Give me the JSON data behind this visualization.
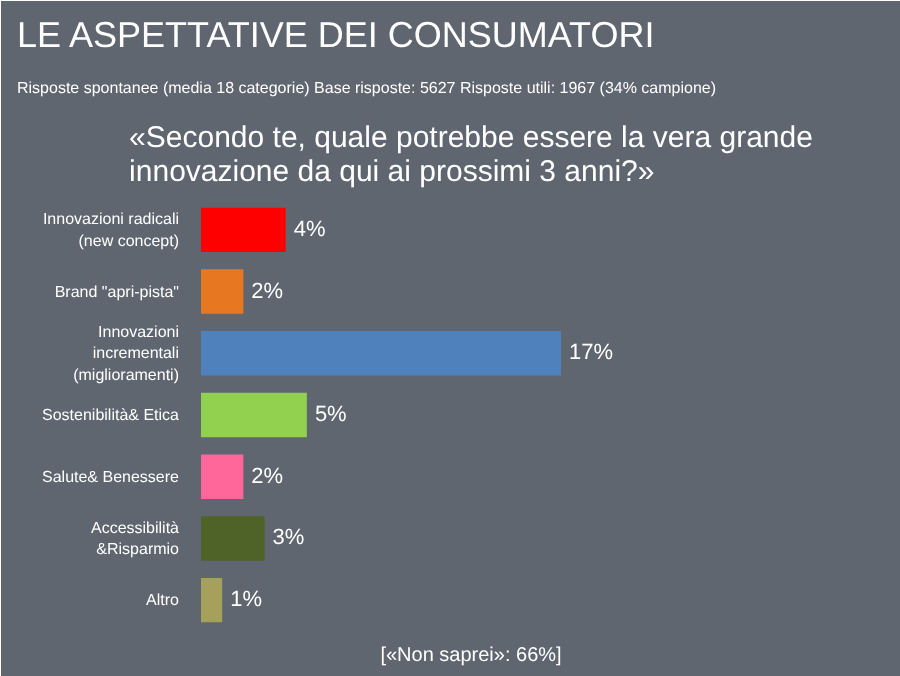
{
  "chart_data": {
    "type": "bar",
    "orientation": "horizontal",
    "title": "LE ASPETTATIVE DEI CONSUMATORI",
    "subtitle": "Risposte spontanee (media 18 categorie) Base risposte: 5627 Risposte utili: 1967 (34% campione)",
    "annotations": [
      "«Secondo te, quale potrebbe essere la vera grande innovazione da qui ai prossimi 3 anni?»",
      "[«Non saprei»: 66%]"
    ],
    "categories": [
      "Innovazioni radicali (new concept)",
      "Brand \"apri-pista\"",
      "Innovazioni incrementali (miglioramenti)",
      "Sostenibilità& Etica",
      "Salute& Benessere",
      "Accessibilità &Risparmio",
      "Altro"
    ],
    "values": [
      4,
      2,
      17,
      5,
      2,
      3,
      1
    ],
    "value_labels": [
      "4%",
      "2%",
      "17%",
      "5%",
      "2%",
      "3%",
      "1%"
    ],
    "colors": [
      "#ff0000",
      "#e87722",
      "#4f81bd",
      "#92d050",
      "#ff6699",
      "#4f6228",
      "#a5a05a"
    ]
  }
}
